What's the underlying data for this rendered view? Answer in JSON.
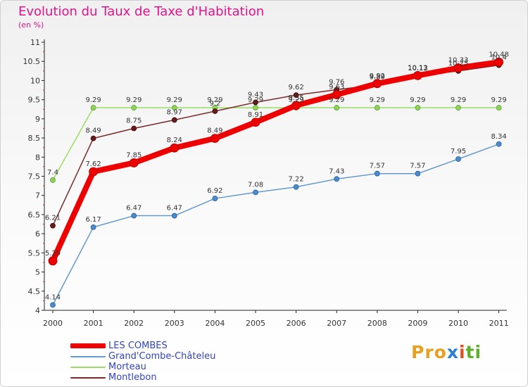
{
  "title": "Evolution du Taux de Taxe d'Habitation",
  "subtitle": "(en %)",
  "logo": {
    "p1": "Pro",
    "p2": "x",
    "p3": "i",
    "p4": "ti"
  },
  "chart_data": {
    "type": "line",
    "title": "Evolution du Taux de Taxe d'Habitation",
    "ylabel": "(en %)",
    "xlabel": "",
    "x": [
      "2000",
      "2001",
      "2002",
      "2003",
      "2004",
      "2005",
      "2006",
      "2007",
      "2008",
      "2009",
      "2010",
      "2011"
    ],
    "ylim": [
      4,
      11
    ],
    "yticks": [
      "4",
      "4.5",
      "5",
      "5.5",
      "6",
      "6.5",
      "7",
      "7.5",
      "8",
      "8.5",
      "9",
      "9.5",
      "10",
      "10.5",
      "11"
    ],
    "grid": false,
    "legend_position": "bottom-left",
    "series": [
      {
        "name": "LES COMBES",
        "color": "#ee0000",
        "values": [
          5.29,
          7.62,
          7.85,
          8.24,
          8.49,
          8.91,
          9.35,
          9.63,
          9.92,
          10.13,
          10.33,
          10.48
        ],
        "labels": [
          "5.29",
          "7.62",
          "7.85",
          "8.24",
          "8.49",
          "8.91",
          "9.35",
          "9.63",
          "9.92",
          "10.13",
          "10.33",
          "10.48"
        ]
      },
      {
        "name": "Grand'Combe-Châteleu",
        "color": "#6699cc",
        "values": [
          4.14,
          6.17,
          6.47,
          6.47,
          6.92,
          7.08,
          7.22,
          7.43,
          7.57,
          7.57,
          7.95,
          8.34
        ],
        "labels": [
          "4.14",
          "6.17",
          "6.47",
          "6.47",
          "6.92",
          "7.08",
          "7.22",
          "7.43",
          "7.57",
          "7.57",
          "7.95",
          "8.34"
        ]
      },
      {
        "name": "Morteau",
        "color": "#99dd66",
        "values": [
          7.4,
          9.29,
          9.29,
          9.29,
          9.29,
          9.29,
          9.29,
          9.29,
          9.29,
          9.29,
          9.29,
          9.29
        ],
        "labels": [
          "7.4",
          "9.29",
          "9.29",
          "9.29",
          "9.29",
          "9.29",
          "9.29",
          "9.29",
          "9.29",
          "9.29",
          "9.29",
          "9.29"
        ]
      },
      {
        "name": "Montlebon",
        "color": "#7a2a2a",
        "values": [
          6.21,
          8.49,
          8.75,
          8.97,
          9.2,
          9.43,
          9.62,
          9.76,
          9.89,
          10.12,
          10.25,
          10.4
        ],
        "labels": [
          "6.21",
          "8.49",
          "8.75",
          "8.97",
          "9.2",
          "9.43",
          "9.62",
          "9.76",
          "9.89",
          "10.12",
          "10.25",
          "10.4"
        ]
      }
    ]
  }
}
